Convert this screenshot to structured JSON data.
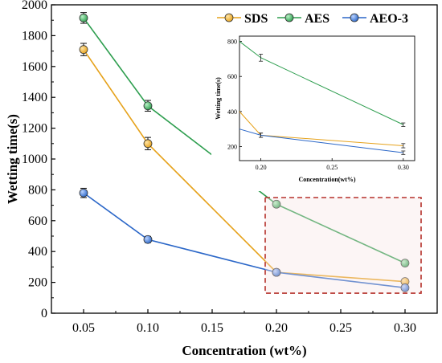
{
  "chart_data": {
    "type": "line",
    "xlabel": "Concentration (wt%)",
    "ylabel": "Wetting time(s)",
    "x": [
      0.05,
      0.1,
      0.2,
      0.3
    ],
    "xticks": [
      "0.05",
      "0.10",
      "0.15",
      "0.20",
      "0.25",
      "0.30"
    ],
    "xtick_values": [
      0.05,
      0.1,
      0.15,
      0.2,
      0.25,
      0.3
    ],
    "xlim": [
      0.025,
      0.325
    ],
    "ylim": [
      0,
      2000
    ],
    "yticks": [
      0,
      200,
      400,
      600,
      800,
      1000,
      1200,
      1400,
      1600,
      1800,
      2000
    ],
    "series": [
      {
        "name": "SDS",
        "color": "#E6A21B",
        "values": [
          1710,
          1100,
          265,
          205
        ],
        "errors": [
          40,
          40,
          15,
          15
        ]
      },
      {
        "name": "AES",
        "color": "#2E9E4F",
        "values": [
          1915,
          1345,
          707,
          325
        ],
        "errors": [
          35,
          35,
          15,
          12
        ]
      },
      {
        "name": "AEO-3",
        "color": "#2B67C8",
        "values": [
          780,
          478,
          265,
          165
        ],
        "errors": [
          30,
          20,
          15,
          12
        ]
      }
    ],
    "legend": {
      "position": "top-right"
    },
    "zoom_box": {
      "x_range": [
        0.195,
        0.305
      ],
      "y_range": [
        130,
        750
      ],
      "color": "#B5312B"
    },
    "inset": {
      "xlabel": "Concentration(wt%)",
      "ylabel": "Wetting time(s)",
      "xlim": [
        0.185,
        0.308
      ],
      "ylim": [
        120,
        830
      ],
      "xticks": [
        "0.20",
        "0.25",
        "0.30"
      ],
      "xtick_values": [
        0.2,
        0.25,
        0.3
      ],
      "yticks": [
        200,
        400,
        600,
        800
      ],
      "series": [
        {
          "name": "SDS",
          "x": [
            0.185,
            0.2,
            0.3
          ],
          "values": [
            400,
            265,
            205
          ],
          "errors": [
            null,
            12,
            12
          ]
        },
        {
          "name": "AES",
          "x": [
            0.185,
            0.2,
            0.3
          ],
          "values": [
            800,
            707,
            325
          ],
          "errors": [
            null,
            20,
            10
          ]
        },
        {
          "name": "AEO-3",
          "x": [
            0.185,
            0.2,
            0.3
          ],
          "values": [
            300,
            265,
            165
          ],
          "errors": [
            null,
            12,
            10
          ]
        }
      ]
    }
  }
}
